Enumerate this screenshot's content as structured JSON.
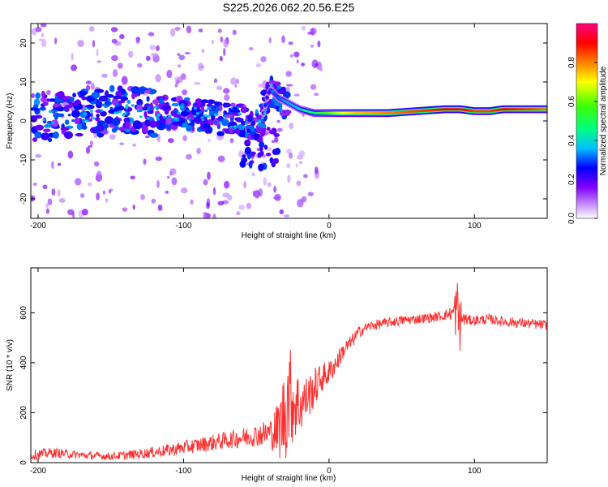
{
  "figure_title": "S225.2026.062.20.56.E25",
  "chart_data": [
    {
      "type": "heatmap",
      "title": "S225.2026.062.20.56.E25",
      "xlabel": "Height of straight line (km)",
      "ylabel": "Frequency (Hz)",
      "xlim": [
        -205,
        150
      ],
      "ylim": [
        -25,
        25
      ],
      "xticks": [
        -200,
        -100,
        0,
        100
      ],
      "xtick_labels": [
        "-200",
        "-100",
        "0",
        "100"
      ],
      "yticks": [
        -20,
        -10,
        0,
        10,
        20
      ],
      "ytick_labels": [
        "-20",
        "-10",
        "0",
        "10",
        "20"
      ],
      "ridge": {
        "x": [
          -200,
          -180,
          -160,
          -140,
          -120,
          -100,
          -80,
          -60,
          -50,
          -45,
          -42,
          -40,
          -35,
          -30,
          -25,
          -20,
          -10,
          0,
          10,
          20,
          40,
          60,
          80,
          90,
          100,
          110,
          120,
          140,
          150
        ],
        "freq": [
          1,
          1,
          2,
          3,
          2,
          2,
          1,
          0,
          -1,
          2,
          7,
          8,
          6,
          5,
          4,
          3,
          2,
          2,
          2,
          2,
          2,
          2.5,
          3,
          3,
          2.5,
          2.5,
          3,
          3,
          3
        ],
        "amplitude": [
          0.35,
          0.3,
          0.3,
          0.3,
          0.3,
          0.35,
          0.35,
          0.3,
          0.3,
          0.25,
          0.25,
          0.3,
          0.3,
          0.35,
          0.35,
          0.4,
          0.5,
          0.6,
          0.7,
          0.75,
          0.8,
          0.85,
          0.9,
          0.95,
          0.85,
          0.85,
          0.9,
          0.85,
          0.8
        ]
      },
      "colorbar": {
        "label": "Normalized spectral amplitude",
        "range": [
          0,
          1
        ],
        "ticks": [
          0.0,
          0.2,
          0.4,
          0.6,
          0.8
        ],
        "tick_labels": [
          "0.0",
          "0.2",
          "0.4",
          "0.6",
          "0.8"
        ],
        "colors": [
          "#ffffff",
          "#8000ff",
          "#0000ff",
          "#00ffff",
          "#00ff00",
          "#ffff00",
          "#ff8000",
          "#ff0000",
          "#ff0080"
        ]
      }
    },
    {
      "type": "line",
      "xlabel": "Height of straight line (km)",
      "ylabel": "SNR (10 * v/v)",
      "xlim": [
        -205,
        150
      ],
      "ylim": [
        0,
        780
      ],
      "xticks": [
        -200,
        -100,
        0,
        100
      ],
      "xtick_labels": [
        "-200",
        "-100",
        "0",
        "100"
      ],
      "yticks": [
        0,
        200,
        400,
        600
      ],
      "ytick_labels": [
        "0",
        "200",
        "400",
        "600"
      ],
      "color": "#ff3030",
      "series": [
        {
          "name": "SNR",
          "x": [
            -205,
            -190,
            -170,
            -150,
            -130,
            -110,
            -90,
            -70,
            -60,
            -50,
            -40,
            -35,
            -30,
            -28,
            -25,
            -20,
            -15,
            -10,
            -5,
            0,
            5,
            10,
            15,
            20,
            25,
            30,
            40,
            50,
            60,
            70,
            80,
            85,
            88,
            90,
            92,
            95,
            100,
            110,
            120,
            130,
            140,
            150
          ],
          "y": [
            30,
            40,
            30,
            25,
            35,
            50,
            70,
            90,
            100,
            110,
            120,
            130,
            200,
            280,
            250,
            230,
            260,
            300,
            340,
            360,
            400,
            450,
            480,
            520,
            540,
            550,
            560,
            570,
            575,
            580,
            590,
            600,
            610,
            560,
            580,
            570,
            570,
            575,
            565,
            560,
            555,
            550
          ],
          "noise_amplitude": [
            20,
            20,
            15,
            15,
            20,
            25,
            30,
            35,
            40,
            45,
            60,
            120,
            200,
            220,
            180,
            120,
            90,
            80,
            60,
            50,
            40,
            35,
            30,
            25,
            20,
            20,
            20,
            20,
            20,
            20,
            20,
            30,
            150,
            120,
            40,
            20,
            20,
            20,
            20,
            20,
            20,
            20
          ]
        }
      ]
    }
  ]
}
